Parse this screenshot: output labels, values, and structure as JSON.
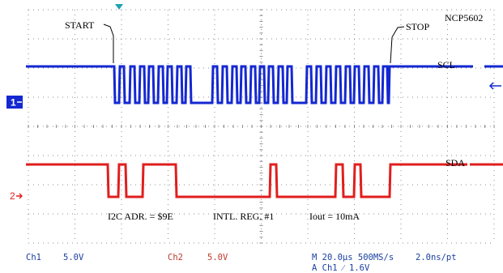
{
  "device_label": "NCP5602",
  "annotations": {
    "start": "START",
    "stop": "STOP",
    "scl": "SCL",
    "sda": "SDA",
    "i2c_address": "I2C ADR. = $9E",
    "internal_register": "INTL. REG. #1",
    "iout": "Iout = 10mA"
  },
  "channel_markers": {
    "ch1": "1",
    "ch2": "2"
  },
  "status_bar": {
    "ch1_name": "Ch1",
    "ch1_scale": "5.0V",
    "ch2_name": "Ch2",
    "ch2_scale": "5.0V",
    "timebase": "M 20.0µs 500MS/s",
    "sample_interval": "2.0ns/pt",
    "trigger": "A  Ch1  ⁄  1.6V"
  },
  "colors": {
    "ch1": "#1428d2",
    "ch2": "#e11e1e",
    "grid": "#8c8c8c",
    "trigger_marker": "#1fa3b3",
    "text": "#000000",
    "status_ch1": "#1a3fa0",
    "status_ch2": "#c0392b"
  },
  "icons": {
    "trigger_position": "trigger-position-triangle-icon",
    "ch1_marker": "channel-1-marker-icon",
    "ch2_marker": "channel-2-marker-icon",
    "trigger_level": "trigger-level-arrow-icon"
  }
}
